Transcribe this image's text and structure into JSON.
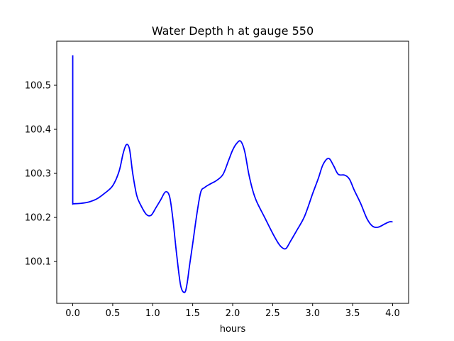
{
  "chart_data": {
    "type": "line",
    "title": "Water Depth h at gauge 550",
    "xlabel": "hours",
    "ylabel": "",
    "xlim": [
      -0.2,
      4.2
    ],
    "ylim": [
      100.005,
      100.6
    ],
    "grid": false,
    "x_ticks": [
      0.0,
      0.5,
      1.0,
      1.5,
      2.0,
      2.5,
      3.0,
      3.5,
      4.0
    ],
    "x_tick_labels": [
      "0.0",
      "0.5",
      "1.0",
      "1.5",
      "2.0",
      "2.5",
      "3.0",
      "3.5",
      "4.0"
    ],
    "y_ticks": [
      100.1,
      100.2,
      100.3,
      100.4,
      100.5
    ],
    "y_tick_labels": [
      "100.1",
      "100.2",
      "100.3",
      "100.4",
      "100.5"
    ],
    "series": [
      {
        "color": "#0000ff",
        "x": [
          0.0,
          0.0,
          0.0,
          0.1,
          0.2,
          0.3,
          0.4,
          0.5,
          0.58,
          0.63,
          0.67,
          0.71,
          0.75,
          0.8,
          0.85,
          0.92,
          0.98,
          1.04,
          1.1,
          1.16,
          1.21,
          1.25,
          1.3,
          1.35,
          1.4,
          1.43,
          1.46,
          1.5,
          1.55,
          1.6,
          1.65,
          1.72,
          1.8,
          1.88,
          1.95,
          2.0,
          2.05,
          2.1,
          2.15,
          2.2,
          2.25,
          2.3,
          2.4,
          2.5,
          2.58,
          2.63,
          2.67,
          2.72,
          2.8,
          2.9,
          3.0,
          3.07,
          3.13,
          3.2,
          3.26,
          3.32,
          3.4,
          3.46,
          3.52,
          3.6,
          3.68,
          3.75,
          3.82,
          3.9,
          3.96,
          4.0
        ],
        "values": [
          100.568,
          100.23,
          100.231,
          100.232,
          100.235,
          100.242,
          100.255,
          100.272,
          100.305,
          100.345,
          100.365,
          100.355,
          100.3,
          100.25,
          100.228,
          100.207,
          100.205,
          100.222,
          100.24,
          100.258,
          100.248,
          100.2,
          100.115,
          100.045,
          100.03,
          100.05,
          100.09,
          100.14,
          100.205,
          100.257,
          100.268,
          100.276,
          100.284,
          100.298,
          100.33,
          100.353,
          100.368,
          100.373,
          100.35,
          100.3,
          100.262,
          100.236,
          100.2,
          100.164,
          100.139,
          100.13,
          100.13,
          100.145,
          100.17,
          100.203,
          100.254,
          100.288,
          100.32,
          100.334,
          100.318,
          100.298,
          100.296,
          100.287,
          100.262,
          100.232,
          100.197,
          100.18,
          100.178,
          100.185,
          100.19,
          100.19
        ]
      }
    ]
  }
}
